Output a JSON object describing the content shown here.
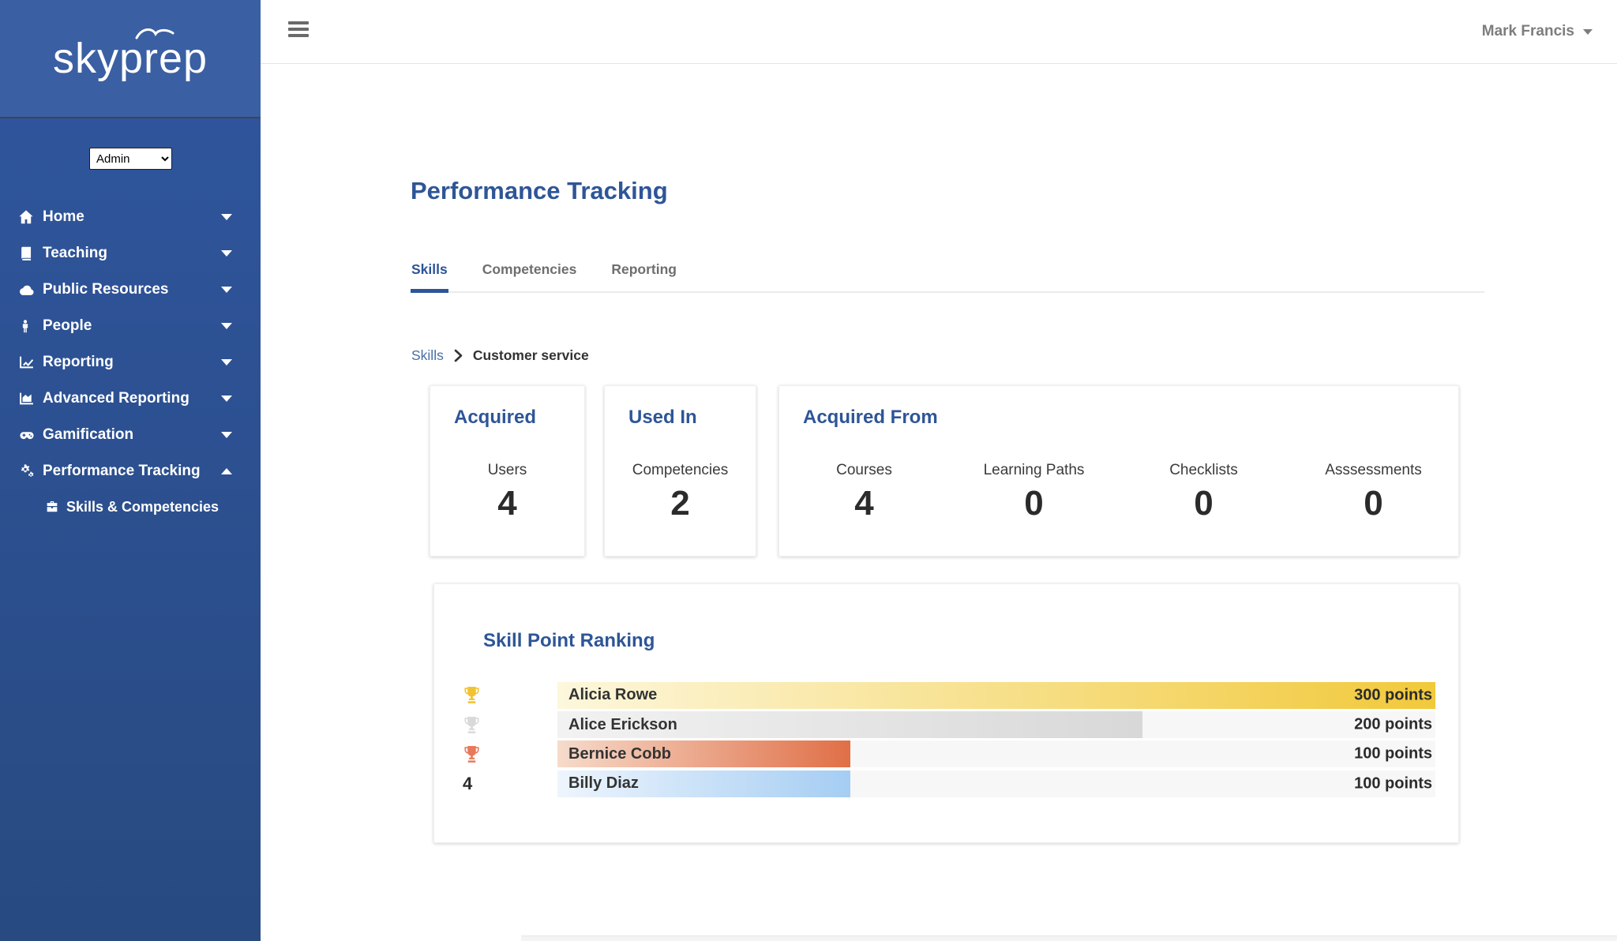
{
  "brand": {
    "logo_text": "skyprep"
  },
  "topbar": {
    "user_name": "Mark Francis"
  },
  "sidebar": {
    "role_selector": {
      "value": "Admin",
      "options": [
        "Admin"
      ]
    },
    "items": [
      {
        "label": "Home",
        "icon": "home-icon",
        "caret": "down",
        "active": false
      },
      {
        "label": "Teaching",
        "icon": "book-icon",
        "caret": "down",
        "active": false
      },
      {
        "label": "Public Resources",
        "icon": "cloud-icon",
        "caret": "down",
        "active": false
      },
      {
        "label": "People",
        "icon": "person-icon",
        "caret": "down",
        "active": false
      },
      {
        "label": "Reporting",
        "icon": "line-chart-icon",
        "caret": "down",
        "active": false
      },
      {
        "label": "Advanced Reporting",
        "icon": "area-chart-icon",
        "caret": "down",
        "active": false
      },
      {
        "label": "Gamification",
        "icon": "gamepad-icon",
        "caret": "down",
        "active": false
      },
      {
        "label": "Performance Tracking",
        "icon": "gears-icon",
        "caret": "up",
        "active": true,
        "children": [
          {
            "label": "Skills & Competencies",
            "icon": "briefcase-icon"
          }
        ]
      }
    ]
  },
  "page": {
    "title": "Performance Tracking",
    "tabs": [
      {
        "label": "Skills",
        "active": true
      },
      {
        "label": "Competencies",
        "active": false
      },
      {
        "label": "Reporting",
        "active": false
      }
    ],
    "breadcrumb": {
      "parent": "Skills",
      "current": "Customer service"
    }
  },
  "stats": {
    "acquired": {
      "title": "Acquired",
      "label": "Users",
      "value": "4"
    },
    "used_in": {
      "title": "Used In",
      "label": "Competencies",
      "value": "2"
    },
    "acquired_from": {
      "title": "Acquired From",
      "metrics": [
        {
          "label": "Courses",
          "value": "4"
        },
        {
          "label": "Learning Paths",
          "value": "0"
        },
        {
          "label": "Checklists",
          "value": "0"
        },
        {
          "label": "Asssessments",
          "value": "0"
        }
      ]
    }
  },
  "chart_data": {
    "type": "bar",
    "orientation": "horizontal",
    "title": "Skill Point Ranking",
    "categories": [
      "Alicia Rowe",
      "Alice Erickson",
      "Bernice Cobb",
      "Billy Diaz"
    ],
    "values": [
      300,
      200,
      100,
      100
    ],
    "value_labels": [
      "300 points",
      "200 points",
      "100 points",
      "100 points"
    ],
    "ranks": [
      1,
      2,
      3,
      4
    ],
    "xlim": [
      0,
      300
    ],
    "legend": "none",
    "grid": false,
    "track_color": "#f7f7f7",
    "bars": [
      {
        "name": "Alicia Rowe",
        "value": 300,
        "label": "300 points",
        "rank": 1,
        "trophy": "gold",
        "gradient_from": "#fdf7dc",
        "gradient_to": "#f1c93b"
      },
      {
        "name": "Alice Erickson",
        "value": 200,
        "label": "200 points",
        "rank": 2,
        "trophy": "silver",
        "gradient_from": "#f2f2f2",
        "gradient_to": "#d8d8d8"
      },
      {
        "name": "Bernice Cobb",
        "value": 100,
        "label": "100 points",
        "rank": 3,
        "trophy": "bronze",
        "gradient_from": "#f6dbcb",
        "gradient_to": "#e06f47"
      },
      {
        "name": "Billy Diaz",
        "value": 100,
        "label": "100 points",
        "rank": 4,
        "trophy": null,
        "gradient_from": "#eef5fd",
        "gradient_to": "#a5cdf3"
      }
    ],
    "trophy_colors": {
      "gold": "#f1c232",
      "silver": "#d9d9d9",
      "bronze": "#e8795a"
    }
  },
  "theme": {
    "accent_blue": "#2e5597",
    "sidebar_top": "#3a5fa3",
    "sidebar_gradient_start": "#30569f",
    "sidebar_gradient_end": "#284a81"
  }
}
